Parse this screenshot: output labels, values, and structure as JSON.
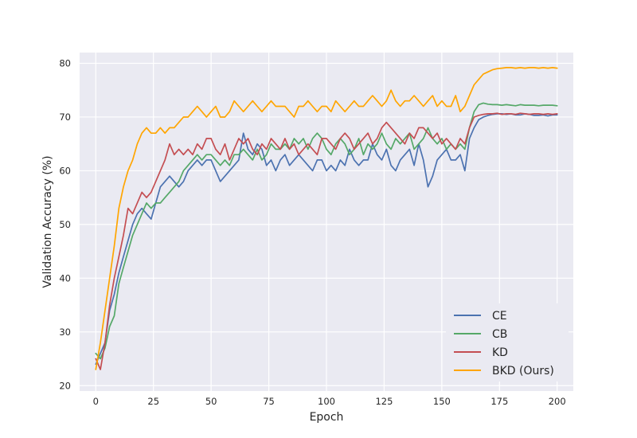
{
  "chart_data": {
    "type": "line",
    "xlabel": "Epoch",
    "ylabel": "Validation Accuracy (%)",
    "xlim": [
      -7,
      207
    ],
    "ylim": [
      19,
      82
    ],
    "xticks": [
      0,
      25,
      50,
      75,
      100,
      125,
      150,
      175,
      200
    ],
    "yticks": [
      20,
      30,
      40,
      50,
      60,
      70,
      80
    ],
    "grid": true,
    "legend_position": "lower-right",
    "series": [
      {
        "name": "CE",
        "color": "#4c72b0",
        "x": [
          0,
          2,
          4,
          6,
          8,
          10,
          12,
          14,
          16,
          18,
          20,
          22,
          24,
          26,
          28,
          30,
          32,
          34,
          36,
          38,
          40,
          42,
          44,
          46,
          48,
          50,
          52,
          54,
          56,
          58,
          60,
          62,
          64,
          66,
          68,
          70,
          72,
          74,
          76,
          78,
          80,
          82,
          84,
          86,
          88,
          90,
          92,
          94,
          96,
          98,
          100,
          102,
          104,
          106,
          108,
          110,
          112,
          114,
          116,
          118,
          120,
          122,
          124,
          126,
          128,
          130,
          132,
          134,
          136,
          138,
          140,
          142,
          144,
          146,
          148,
          150,
          152,
          154,
          156,
          158,
          160,
          162,
          164,
          166,
          168,
          170,
          172,
          174,
          176,
          178,
          180,
          182,
          184,
          186,
          188,
          190,
          192,
          194,
          196,
          198,
          200
        ],
        "y": [
          24,
          26,
          28,
          34,
          37,
          41,
          44,
          47,
          50,
          52,
          53,
          52,
          51,
          54,
          57,
          58,
          59,
          58,
          57,
          58,
          60,
          61,
          62,
          61,
          62,
          62,
          60,
          58,
          59,
          60,
          61,
          62,
          67,
          64,
          63,
          65,
          64,
          61,
          62,
          60,
          62,
          63,
          61,
          62,
          63,
          62,
          61,
          60,
          62,
          62,
          60,
          61,
          60,
          62,
          61,
          64,
          62,
          61,
          62,
          62,
          65,
          63,
          62,
          64,
          61,
          60,
          62,
          63,
          64,
          61,
          65,
          62,
          57,
          59,
          62,
          63,
          64,
          62,
          62,
          63,
          60,
          66,
          68,
          69.5,
          70,
          70.3,
          70.5,
          70.6,
          70.6,
          70.5,
          70.6,
          70.4,
          70.4,
          70.6,
          70.5,
          70.3,
          70.3,
          70.4,
          70.2,
          70.4,
          70.4
        ]
      },
      {
        "name": "CB",
        "color": "#55a868",
        "x": [
          0,
          2,
          4,
          6,
          8,
          10,
          12,
          14,
          16,
          18,
          20,
          22,
          24,
          26,
          28,
          30,
          32,
          34,
          36,
          38,
          40,
          42,
          44,
          46,
          48,
          50,
          52,
          54,
          56,
          58,
          60,
          62,
          64,
          66,
          68,
          70,
          72,
          74,
          76,
          78,
          80,
          82,
          84,
          86,
          88,
          90,
          92,
          94,
          96,
          98,
          100,
          102,
          104,
          106,
          108,
          110,
          112,
          114,
          116,
          118,
          120,
          122,
          124,
          126,
          128,
          130,
          132,
          134,
          136,
          138,
          140,
          142,
          144,
          146,
          148,
          150,
          152,
          154,
          156,
          158,
          160,
          162,
          164,
          166,
          168,
          170,
          172,
          174,
          176,
          178,
          180,
          182,
          184,
          186,
          188,
          190,
          192,
          194,
          196,
          198,
          200
        ],
        "y": [
          26,
          25,
          27,
          31,
          33,
          39,
          42,
          45,
          48,
          50,
          52,
          54,
          53,
          54,
          54,
          55,
          56,
          57,
          58,
          60,
          61,
          62,
          63,
          62,
          63,
          63,
          62,
          61,
          62,
          61,
          63,
          63,
          64,
          63,
          62,
          64,
          62,
          63,
          65,
          64,
          64,
          65,
          64,
          66,
          65,
          66,
          64,
          66,
          67,
          66,
          64,
          63,
          65,
          66,
          65,
          63,
          64,
          66,
          63,
          65,
          64,
          65,
          67,
          65,
          64,
          66,
          65,
          66,
          67,
          64,
          65,
          66,
          68,
          66,
          65,
          66,
          64,
          65,
          64,
          65,
          64,
          68,
          71,
          72.3,
          72.6,
          72.4,
          72.3,
          72.3,
          72.2,
          72.3,
          72.2,
          72.1,
          72.3,
          72.2,
          72.2,
          72.2,
          72.1,
          72.2,
          72.2,
          72.2,
          72.1
        ]
      },
      {
        "name": "KD",
        "color": "#c44e52",
        "x": [
          0,
          2,
          4,
          6,
          8,
          10,
          12,
          14,
          16,
          18,
          20,
          22,
          24,
          26,
          28,
          30,
          32,
          34,
          36,
          38,
          40,
          42,
          44,
          46,
          48,
          50,
          52,
          54,
          56,
          58,
          60,
          62,
          64,
          66,
          68,
          70,
          72,
          74,
          76,
          78,
          80,
          82,
          84,
          86,
          88,
          90,
          92,
          94,
          96,
          98,
          100,
          102,
          104,
          106,
          108,
          110,
          112,
          114,
          116,
          118,
          120,
          122,
          124,
          126,
          128,
          130,
          132,
          134,
          136,
          138,
          140,
          142,
          144,
          146,
          148,
          150,
          152,
          154,
          156,
          158,
          160,
          162,
          164,
          166,
          168,
          170,
          172,
          174,
          176,
          178,
          180,
          182,
          184,
          186,
          188,
          190,
          192,
          194,
          196,
          198,
          200
        ],
        "y": [
          25,
          23,
          28,
          35,
          40,
          44,
          48,
          53,
          52,
          54,
          56,
          55,
          56,
          58,
          60,
          62,
          65,
          63,
          64,
          63,
          64,
          63,
          65,
          64,
          66,
          66,
          64,
          63,
          65,
          62,
          64,
          66,
          65,
          66,
          64,
          63,
          65,
          64,
          66,
          65,
          64,
          66,
          64,
          65,
          63,
          64,
          65,
          64,
          63,
          66,
          66,
          65,
          64,
          66,
          67,
          66,
          64,
          65,
          66,
          67,
          65,
          66,
          68,
          69,
          68,
          67,
          66,
          65,
          67,
          66,
          68,
          68,
          67,
          66,
          67,
          65,
          66,
          65,
          64,
          66,
          65,
          68,
          70,
          70.3,
          70.5,
          70.6,
          70.6,
          70.7,
          70.5,
          70.6,
          70.6,
          70.5,
          70.7,
          70.6,
          70.5,
          70.6,
          70.6,
          70.5,
          70.6,
          70.5,
          70.6
        ]
      },
      {
        "name": "BKD (Ours)",
        "color": "#ffa500",
        "x": [
          0,
          2,
          4,
          6,
          8,
          10,
          12,
          14,
          16,
          18,
          20,
          22,
          24,
          26,
          28,
          30,
          32,
          34,
          36,
          38,
          40,
          42,
          44,
          46,
          48,
          50,
          52,
          54,
          56,
          58,
          60,
          62,
          64,
          66,
          68,
          70,
          72,
          74,
          76,
          78,
          80,
          82,
          84,
          86,
          88,
          90,
          92,
          94,
          96,
          98,
          100,
          102,
          104,
          106,
          108,
          110,
          112,
          114,
          116,
          118,
          120,
          122,
          124,
          126,
          128,
          130,
          132,
          134,
          136,
          138,
          140,
          142,
          144,
          146,
          148,
          150,
          152,
          154,
          156,
          158,
          160,
          162,
          164,
          166,
          168,
          170,
          172,
          174,
          176,
          178,
          180,
          182,
          184,
          186,
          188,
          190,
          192,
          194,
          196,
          198,
          200
        ],
        "y": [
          23,
          28,
          34,
          40,
          46,
          53,
          57,
          60,
          62,
          65,
          67,
          68,
          67,
          67,
          68,
          67,
          68,
          68,
          69,
          70,
          70,
          71,
          72,
          71,
          70,
          71,
          72,
          70,
          70,
          71,
          73,
          72,
          71,
          72,
          73,
          72,
          71,
          72,
          73,
          72,
          72,
          72,
          71,
          70,
          72,
          72,
          73,
          72,
          71,
          72,
          72,
          71,
          73,
          72,
          71,
          72,
          73,
          72,
          72,
          73,
          74,
          73,
          72,
          73,
          75,
          73,
          72,
          73,
          73,
          74,
          73,
          72,
          73,
          74,
          72,
          73,
          72,
          72,
          74,
          71,
          72,
          74,
          76,
          77,
          78,
          78.4,
          78.8,
          79,
          79.1,
          79.2,
          79.2,
          79.1,
          79.2,
          79.1,
          79.2,
          79.2,
          79.1,
          79.2,
          79.1,
          79.2,
          79.1
        ]
      }
    ]
  }
}
